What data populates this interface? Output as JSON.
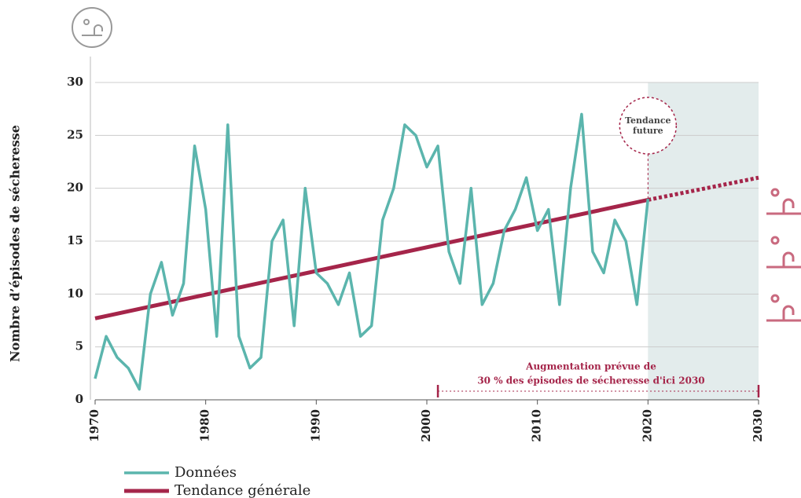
{
  "chart_data": {
    "type": "line",
    "y_label": "Nombre d’épisodes de sécheresse",
    "series": [
      {
        "name": "Données",
        "color": "#5bb5ad",
        "x": [
          1970,
          1971,
          1972,
          1973,
          1974,
          1975,
          1976,
          1977,
          1978,
          1979,
          1980,
          1981,
          1982,
          1983,
          1984,
          1985,
          1986,
          1987,
          1988,
          1989,
          1990,
          1991,
          1992,
          1993,
          1994,
          1995,
          1996,
          1997,
          1998,
          1999,
          2000,
          2001,
          2002,
          2003,
          2004,
          2005,
          2006,
          2007,
          2008,
          2009,
          2010,
          2011,
          2012,
          2013,
          2014,
          2015,
          2016,
          2017,
          2018,
          2019,
          2020
        ],
        "values": [
          2,
          6,
          4,
          3,
          1,
          10,
          13,
          8,
          11,
          24,
          18,
          6,
          26,
          6,
          3,
          4,
          15,
          17,
          7,
          20,
          12,
          11,
          9,
          12,
          6,
          7,
          17,
          20,
          26,
          25,
          22,
          24,
          14,
          11,
          20,
          9,
          11,
          16,
          18,
          21,
          16,
          18,
          9,
          20,
          27,
          14,
          12,
          17,
          15,
          9,
          19
        ]
      },
      {
        "name": "Tendance générale",
        "color": "#a5254a",
        "x": [
          1970,
          2020
        ],
        "values": [
          7.7,
          18.9
        ]
      }
    ],
    "projection": {
      "color": "#a5254a",
      "x": [
        2020,
        2030
      ],
      "values": [
        18.9,
        21
      ]
    },
    "forecast_region": [
      2020,
      2030
    ],
    "future_label": "Tendance future",
    "increase": {
      "text": [
        "Augmentation prévue de",
        "30 % des épisodes de sécheresse d'ici 2030"
      ],
      "range": [
        2001,
        2030
      ]
    },
    "xlim": [
      1970,
      2030
    ],
    "xticks": [
      1970,
      1980,
      1990,
      2000,
      2010,
      2020,
      2030
    ],
    "ylim": [
      0,
      30
    ],
    "yticks": [
      0,
      5,
      10,
      15,
      20,
      25,
      30
    ],
    "grid": true
  }
}
